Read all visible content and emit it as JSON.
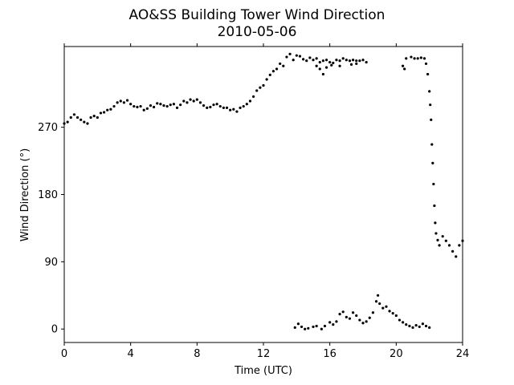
{
  "chart_data": {
    "type": "scatter",
    "title": "AO&SS Building Tower Wind Direction",
    "subtitle": "2010-05-06",
    "xlabel": "Time (UTC)",
    "ylabel": "Wind Direction (°)",
    "xlim": [
      0,
      24
    ],
    "ylim": [
      -18,
      378
    ],
    "x_ticks": [
      0,
      4,
      8,
      12,
      16,
      20,
      24
    ],
    "y_ticks": [
      0,
      90,
      180,
      270
    ],
    "grid": false,
    "marker_color": "#000000",
    "series": [
      {
        "points": [
          [
            0.0,
            275
          ],
          [
            0.2,
            277
          ],
          [
            0.4,
            283
          ],
          [
            0.6,
            287
          ],
          [
            0.8,
            283
          ],
          [
            1.0,
            280
          ],
          [
            1.2,
            277
          ],
          [
            1.4,
            275
          ],
          [
            1.6,
            283
          ],
          [
            1.8,
            285
          ],
          [
            2.0,
            283
          ],
          [
            2.2,
            289
          ],
          [
            2.4,
            290
          ],
          [
            2.6,
            293
          ],
          [
            2.8,
            294
          ],
          [
            3.0,
            298
          ],
          [
            3.2,
            303
          ],
          [
            3.4,
            305
          ],
          [
            3.6,
            303
          ],
          [
            3.8,
            306
          ],
          [
            4.0,
            301
          ],
          [
            4.2,
            298
          ],
          [
            4.4,
            297
          ],
          [
            4.6,
            298
          ],
          [
            4.8,
            293
          ],
          [
            5.0,
            295
          ],
          [
            5.2,
            299
          ],
          [
            5.4,
            297
          ],
          [
            5.6,
            302
          ],
          [
            5.8,
            301
          ],
          [
            6.0,
            299
          ],
          [
            6.2,
            298
          ],
          [
            6.4,
            300
          ],
          [
            6.6,
            301
          ],
          [
            6.8,
            296
          ],
          [
            7.0,
            300
          ],
          [
            7.2,
            305
          ],
          [
            7.4,
            303
          ],
          [
            7.6,
            307
          ],
          [
            7.8,
            305
          ],
          [
            8.0,
            307
          ],
          [
            8.2,
            303
          ],
          [
            8.4,
            299
          ],
          [
            8.6,
            296
          ],
          [
            8.8,
            297
          ],
          [
            9.0,
            300
          ],
          [
            9.2,
            301
          ],
          [
            9.4,
            298
          ],
          [
            9.6,
            296
          ],
          [
            9.8,
            296
          ],
          [
            10.0,
            293
          ],
          [
            10.2,
            294
          ],
          [
            10.4,
            291
          ],
          [
            10.6,
            296
          ],
          [
            10.8,
            298
          ],
          [
            11.0,
            301
          ],
          [
            11.2,
            305
          ],
          [
            11.4,
            311
          ],
          [
            11.6,
            319
          ],
          [
            11.8,
            323
          ],
          [
            12.0,
            326
          ],
          [
            12.2,
            334
          ],
          [
            12.4,
            340
          ],
          [
            12.6,
            345
          ],
          [
            12.8,
            348
          ],
          [
            13.0,
            355
          ],
          [
            13.2,
            352
          ],
          [
            13.4,
            364
          ],
          [
            13.6,
            368
          ],
          [
            13.8,
            360
          ],
          [
            14.0,
            366
          ],
          [
            14.2,
            365
          ],
          [
            14.4,
            361
          ],
          [
            14.6,
            359
          ],
          [
            14.8,
            363
          ],
          [
            15.0,
            360
          ],
          [
            15.2,
            362
          ],
          [
            15.4,
            357
          ],
          [
            15.6,
            359
          ],
          [
            15.8,
            360
          ],
          [
            16.0,
            357
          ],
          [
            16.2,
            356
          ],
          [
            16.4,
            360
          ],
          [
            16.6,
            359
          ],
          [
            16.8,
            362
          ],
          [
            17.0,
            360
          ],
          [
            17.2,
            359
          ],
          [
            17.4,
            360
          ],
          [
            17.6,
            359
          ],
          [
            17.8,
            359
          ],
          [
            18.0,
            360
          ],
          [
            18.2,
            357
          ],
          [
            15.2,
            352
          ],
          [
            15.4,
            348
          ],
          [
            15.6,
            341
          ],
          [
            15.8,
            350
          ],
          [
            16.1,
            353
          ],
          [
            16.6,
            352
          ],
          [
            17.3,
            354
          ],
          [
            17.6,
            355
          ],
          [
            20.4,
            352
          ],
          [
            20.5,
            348
          ],
          [
            20.6,
            362
          ],
          [
            20.9,
            364
          ],
          [
            21.1,
            362
          ],
          [
            21.3,
            362
          ],
          [
            21.5,
            363
          ],
          [
            21.7,
            362
          ],
          [
            21.8,
            355
          ],
          [
            21.9,
            341
          ],
          [
            22.0,
            318
          ],
          [
            22.05,
            300
          ],
          [
            22.1,
            280
          ],
          [
            22.15,
            247
          ],
          [
            22.2,
            222
          ],
          [
            22.25,
            194
          ],
          [
            22.3,
            165
          ],
          [
            22.35,
            142
          ],
          [
            22.4,
            128
          ],
          [
            22.5,
            119
          ],
          [
            22.6,
            112
          ],
          [
            22.8,
            124
          ],
          [
            23.0,
            118
          ],
          [
            23.2,
            112
          ],
          [
            23.4,
            104
          ],
          [
            23.6,
            97
          ],
          [
            23.8,
            112
          ],
          [
            24.0,
            118
          ],
          [
            13.9,
            2
          ],
          [
            14.1,
            7
          ],
          [
            14.3,
            3
          ],
          [
            14.5,
            0
          ],
          [
            14.7,
            1
          ],
          [
            15.0,
            3
          ],
          [
            15.2,
            4
          ],
          [
            15.5,
            0
          ],
          [
            15.7,
            4
          ],
          [
            16.0,
            9
          ],
          [
            16.2,
            6
          ],
          [
            16.4,
            10
          ],
          [
            16.6,
            20
          ],
          [
            16.8,
            23
          ],
          [
            17.0,
            16
          ],
          [
            17.2,
            14
          ],
          [
            17.4,
            22
          ],
          [
            17.6,
            18
          ],
          [
            17.8,
            12
          ],
          [
            18.0,
            8
          ],
          [
            18.2,
            10
          ],
          [
            18.4,
            15
          ],
          [
            18.6,
            22
          ],
          [
            18.8,
            37
          ],
          [
            18.9,
            45
          ],
          [
            19.0,
            34
          ],
          [
            19.2,
            28
          ],
          [
            19.4,
            30
          ],
          [
            19.6,
            24
          ],
          [
            19.8,
            21
          ],
          [
            20.0,
            18
          ],
          [
            20.2,
            12
          ],
          [
            20.4,
            9
          ],
          [
            20.6,
            6
          ],
          [
            20.8,
            4
          ],
          [
            21.0,
            2
          ],
          [
            21.2,
            5
          ],
          [
            21.4,
            3
          ],
          [
            21.6,
            7
          ],
          [
            21.8,
            4
          ],
          [
            22.0,
            2
          ]
        ]
      }
    ]
  }
}
